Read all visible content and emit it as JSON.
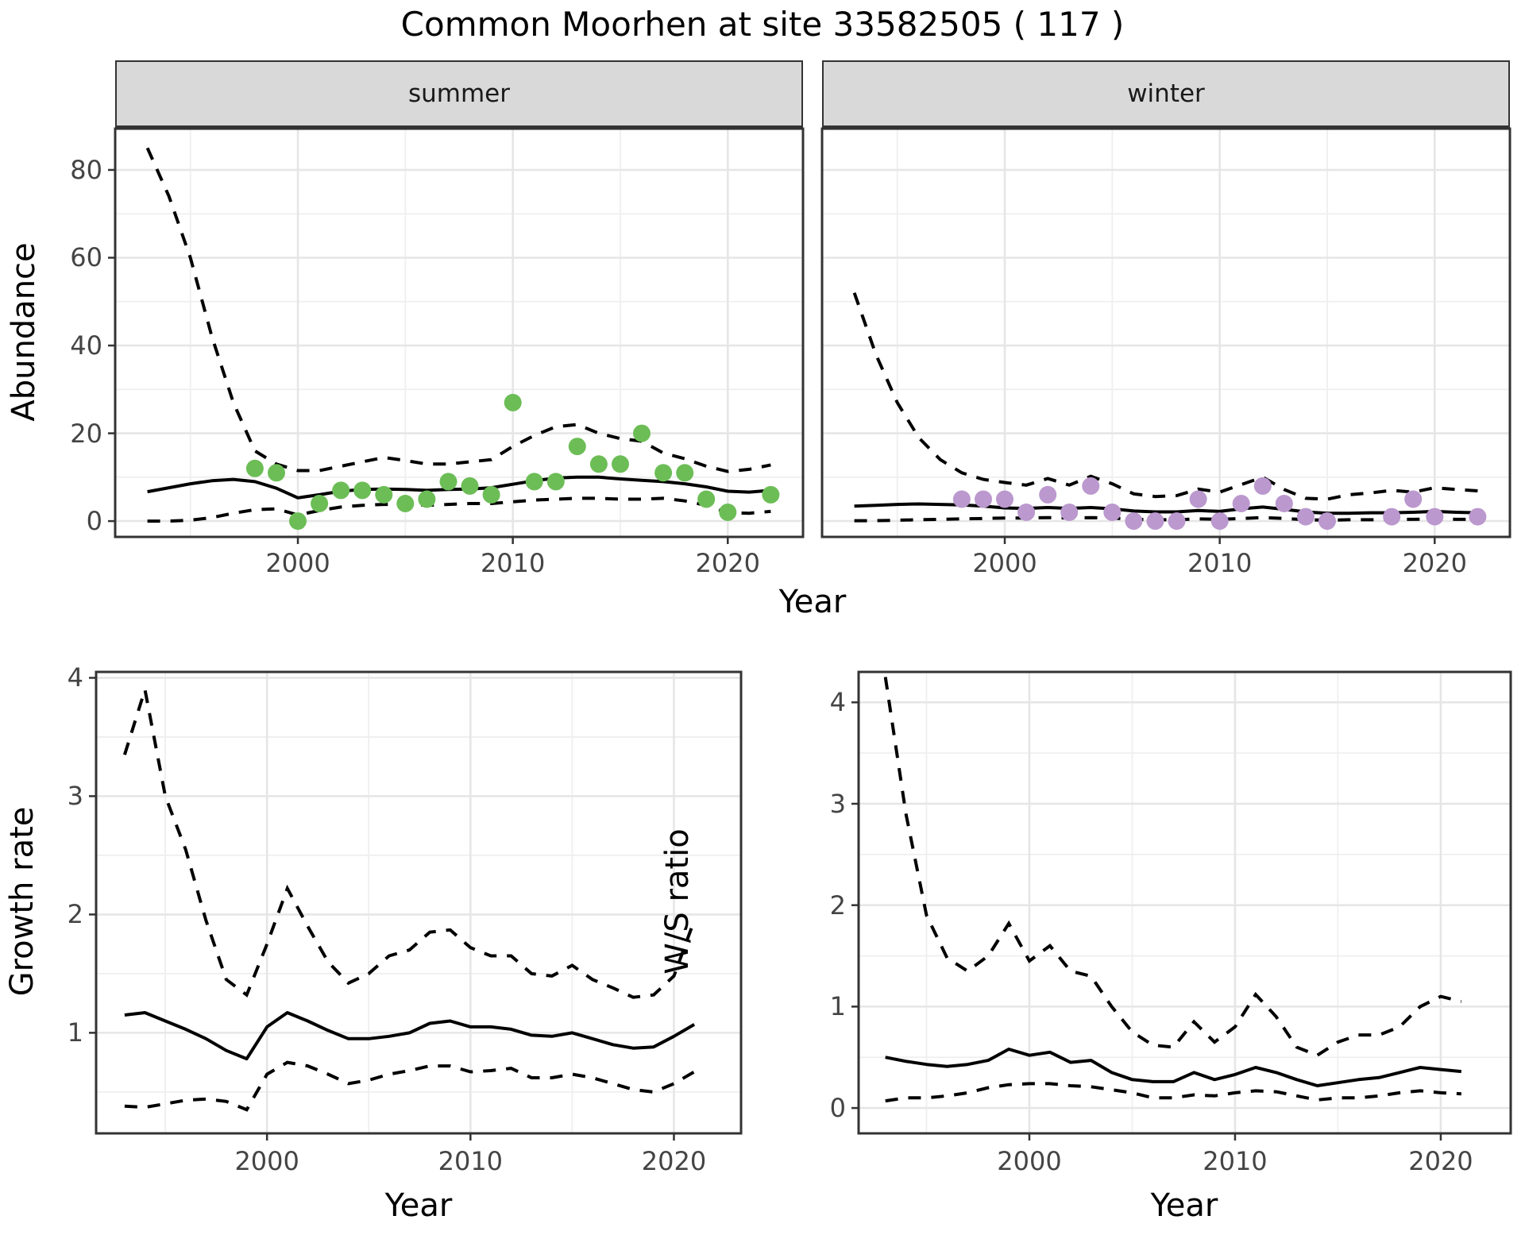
{
  "title": "Common Moorhen at site 33582505 ( 117 )",
  "colors": {
    "summer_point": "#6cbd56",
    "winter_point": "#bb98ce",
    "line": "#000000",
    "grid_major": "#e6e6e6",
    "grid_minor": "#efefef",
    "panel_border": "#333333",
    "strip_bg": "#d9d9d9",
    "tick_text": "#444444"
  },
  "chart_data": [
    {
      "id": "abundance_summer",
      "type": "line+scatter",
      "facet": "summer",
      "ylabel": "Abundance",
      "xlabel": "Year",
      "xlim": [
        1991.5,
        2023.5
      ],
      "ylim": [
        -3.6,
        89.4
      ],
      "xticks": [
        2000,
        2010,
        2020
      ],
      "xminor": [
        1995,
        2005,
        2015
      ],
      "yticks": [
        0,
        20,
        40,
        60,
        80
      ],
      "yminor": [
        10,
        30,
        50,
        70
      ],
      "show_y_tick_labels": true,
      "years": [
        1993,
        1994,
        1995,
        1996,
        1997,
        1998,
        1999,
        2000,
        2001,
        2002,
        2003,
        2004,
        2005,
        2006,
        2007,
        2008,
        2009,
        2010,
        2011,
        2012,
        2013,
        2014,
        2015,
        2016,
        2017,
        2018,
        2019,
        2020,
        2021,
        2022
      ],
      "mean": [
        6.7,
        7.6,
        8.5,
        9.2,
        9.5,
        9.0,
        7.5,
        5.3,
        6.0,
        6.8,
        7.2,
        7.3,
        7.2,
        7.0,
        7.2,
        7.3,
        7.6,
        8.4,
        9.2,
        9.8,
        10.0,
        10.0,
        9.6,
        9.3,
        9.0,
        8.5,
        7.8,
        6.8,
        6.6,
        7.0
      ],
      "upper": [
        85,
        74,
        60,
        42,
        27,
        16,
        13,
        11.5,
        11.5,
        12.5,
        13.5,
        14.5,
        13.8,
        13.0,
        13.0,
        13.5,
        14.0,
        17.0,
        19.5,
        21.5,
        22.0,
        20.0,
        18.8,
        18.2,
        15.5,
        14.2,
        12.5,
        11.3,
        11.8,
        12.8
      ],
      "lower": [
        0,
        0,
        0.2,
        0.8,
        1.8,
        2.6,
        2.8,
        1.4,
        2.4,
        3.2,
        3.6,
        3.8,
        3.8,
        3.6,
        3.8,
        4.0,
        4.0,
        4.4,
        4.8,
        5.0,
        5.2,
        5.2,
        5.0,
        5.0,
        5.2,
        4.6,
        3.6,
        1.9,
        1.8,
        2.2
      ],
      "points": [
        [
          1998,
          12
        ],
        [
          1999,
          11
        ],
        [
          2000,
          0
        ],
        [
          2001,
          4
        ],
        [
          2002,
          7
        ],
        [
          2003,
          7
        ],
        [
          2004,
          6
        ],
        [
          2005,
          4
        ],
        [
          2006,
          5
        ],
        [
          2007,
          9
        ],
        [
          2008,
          8
        ],
        [
          2009,
          6
        ],
        [
          2010,
          27
        ],
        [
          2011,
          9
        ],
        [
          2012,
          9
        ],
        [
          2013,
          17
        ],
        [
          2014,
          13
        ],
        [
          2015,
          13
        ],
        [
          2016,
          20
        ],
        [
          2017,
          11
        ],
        [
          2018,
          11
        ],
        [
          2019,
          5
        ],
        [
          2020,
          2
        ],
        [
          2022,
          6
        ]
      ],
      "point_color": "#6cbd56"
    },
    {
      "id": "abundance_winter",
      "type": "line+scatter",
      "facet": "winter",
      "ylabel": "Abundance",
      "xlabel": "Year",
      "xlim": [
        1991.5,
        2023.5
      ],
      "ylim": [
        -3.6,
        89.4
      ],
      "xticks": [
        2000,
        2010,
        2020
      ],
      "xminor": [
        1995,
        2005,
        2015
      ],
      "yticks": [
        0,
        20,
        40,
        60,
        80
      ],
      "yminor": [
        10,
        30,
        50,
        70
      ],
      "show_y_tick_labels": false,
      "years": [
        1993,
        1994,
        1995,
        1996,
        1997,
        1998,
        1999,
        2000,
        2001,
        2002,
        2003,
        2004,
        2005,
        2006,
        2007,
        2008,
        2009,
        2010,
        2011,
        2012,
        2013,
        2014,
        2015,
        2016,
        2017,
        2018,
        2019,
        2020,
        2021,
        2022
      ],
      "mean": [
        3.4,
        3.6,
        3.8,
        3.9,
        3.8,
        3.7,
        3.4,
        3.0,
        2.9,
        3.1,
        2.9,
        3.1,
        2.8,
        2.3,
        2.1,
        2.1,
        2.4,
        2.2,
        2.8,
        3.2,
        2.7,
        2.1,
        1.8,
        1.8,
        1.9,
        1.9,
        2.0,
        2.2,
        2.0,
        1.9
      ],
      "upper": [
        52,
        38,
        27,
        19,
        14,
        11,
        9.5,
        8.8,
        8.2,
        9.7,
        8.2,
        10.2,
        8.5,
        6.2,
        5.6,
        5.8,
        7.3,
        6.6,
        8.3,
        10.0,
        7.2,
        5.2,
        5.0,
        6.0,
        6.4,
        7.0,
        6.6,
        7.6,
        7.2,
        6.9
      ],
      "lower": [
        0.1,
        0.1,
        0.2,
        0.3,
        0.4,
        0.5,
        0.6,
        0.7,
        0.7,
        0.8,
        0.7,
        0.8,
        0.7,
        0.4,
        0.3,
        0.3,
        0.5,
        0.4,
        0.6,
        0.8,
        0.6,
        0.3,
        0.2,
        0.3,
        0.3,
        0.4,
        0.4,
        0.5,
        0.4,
        0.4
      ],
      "points": [
        [
          1998,
          5
        ],
        [
          1999,
          5
        ],
        [
          2000,
          5
        ],
        [
          2001,
          2
        ],
        [
          2002,
          6
        ],
        [
          2003,
          2
        ],
        [
          2004,
          8
        ],
        [
          2005,
          2
        ],
        [
          2006,
          0
        ],
        [
          2007,
          0
        ],
        [
          2008,
          0
        ],
        [
          2009,
          5
        ],
        [
          2010,
          0
        ],
        [
          2011,
          4
        ],
        [
          2012,
          8
        ],
        [
          2013,
          4
        ],
        [
          2014,
          1
        ],
        [
          2015,
          0
        ],
        [
          2018,
          1
        ],
        [
          2019,
          5
        ],
        [
          2020,
          1
        ],
        [
          2022,
          1
        ]
      ],
      "point_color": "#bb98ce"
    },
    {
      "id": "growth_rate",
      "type": "line",
      "facet": null,
      "ylabel": "Growth rate",
      "xlabel": "Year",
      "xlim": [
        1991.6,
        2023.3
      ],
      "ylim": [
        0.15,
        4.05
      ],
      "xticks": [
        2000,
        2010,
        2020
      ],
      "xminor": [
        1995,
        2005,
        2015
      ],
      "yticks": [
        1,
        2,
        3,
        4
      ],
      "yminor": [
        0.5,
        1.5,
        2.5,
        3.5
      ],
      "show_y_tick_labels": true,
      "years": [
        1993,
        1994,
        1995,
        1996,
        1997,
        1998,
        1999,
        2000,
        2001,
        2002,
        2003,
        2004,
        2005,
        2006,
        2007,
        2008,
        2009,
        2010,
        2011,
        2012,
        2013,
        2014,
        2015,
        2016,
        2017,
        2018,
        2019,
        2020,
        2021
      ],
      "mean": [
        1.15,
        1.17,
        1.1,
        1.03,
        0.95,
        0.85,
        0.78,
        1.05,
        1.17,
        1.1,
        1.02,
        0.95,
        0.95,
        0.97,
        1.0,
        1.08,
        1.1,
        1.05,
        1.05,
        1.03,
        0.98,
        0.97,
        1.0,
        0.95,
        0.9,
        0.87,
        0.88,
        0.97,
        1.07
      ],
      "upper": [
        3.35,
        3.9,
        3.0,
        2.55,
        1.95,
        1.45,
        1.32,
        1.75,
        2.22,
        1.9,
        1.6,
        1.42,
        1.5,
        1.65,
        1.7,
        1.85,
        1.87,
        1.72,
        1.65,
        1.65,
        1.5,
        1.48,
        1.57,
        1.45,
        1.38,
        1.3,
        1.32,
        1.48,
        1.95
      ],
      "lower": [
        0.38,
        0.37,
        0.4,
        0.43,
        0.44,
        0.42,
        0.35,
        0.65,
        0.75,
        0.72,
        0.65,
        0.57,
        0.6,
        0.65,
        0.68,
        0.72,
        0.72,
        0.67,
        0.68,
        0.7,
        0.62,
        0.62,
        0.65,
        0.62,
        0.57,
        0.52,
        0.5,
        0.57,
        0.67
      ],
      "points": [],
      "point_color": null
    },
    {
      "id": "ws_ratio",
      "type": "line",
      "facet": null,
      "ylabel": "W/S ratio",
      "xlabel": "Year",
      "xlim": [
        1991.7,
        2023.4
      ],
      "ylim": [
        -0.25,
        4.3
      ],
      "xticks": [
        2000,
        2010,
        2020
      ],
      "xminor": [
        1995,
        2005,
        2015
      ],
      "yticks": [
        0,
        1,
        2,
        3,
        4
      ],
      "yminor": [
        0.5,
        1.5,
        2.5,
        3.5
      ],
      "show_y_tick_labels": true,
      "years": [
        1993,
        1994,
        1995,
        1996,
        1997,
        1998,
        1999,
        2000,
        2001,
        2002,
        2003,
        2004,
        2005,
        2006,
        2007,
        2008,
        2009,
        2010,
        2011,
        2012,
        2013,
        2014,
        2015,
        2016,
        2017,
        2018,
        2019,
        2020,
        2021
      ],
      "mean": [
        0.5,
        0.46,
        0.43,
        0.41,
        0.43,
        0.47,
        0.58,
        0.52,
        0.55,
        0.45,
        0.47,
        0.35,
        0.28,
        0.26,
        0.26,
        0.35,
        0.28,
        0.33,
        0.4,
        0.35,
        0.28,
        0.22,
        0.25,
        0.28,
        0.3,
        0.35,
        0.4,
        0.38,
        0.36
      ],
      "upper": [
        4.25,
        2.9,
        1.9,
        1.48,
        1.35,
        1.5,
        1.82,
        1.45,
        1.6,
        1.35,
        1.3,
        1.0,
        0.75,
        0.62,
        0.6,
        0.85,
        0.65,
        0.8,
        1.12,
        0.9,
        0.6,
        0.52,
        0.65,
        0.72,
        0.72,
        0.8,
        1.0,
        1.1,
        1.05
      ],
      "lower": [
        0.07,
        0.1,
        0.1,
        0.12,
        0.15,
        0.2,
        0.23,
        0.24,
        0.24,
        0.22,
        0.21,
        0.18,
        0.15,
        0.1,
        0.1,
        0.13,
        0.12,
        0.15,
        0.17,
        0.16,
        0.12,
        0.08,
        0.1,
        0.1,
        0.12,
        0.15,
        0.17,
        0.15,
        0.14
      ],
      "points": [],
      "point_color": null
    }
  ]
}
